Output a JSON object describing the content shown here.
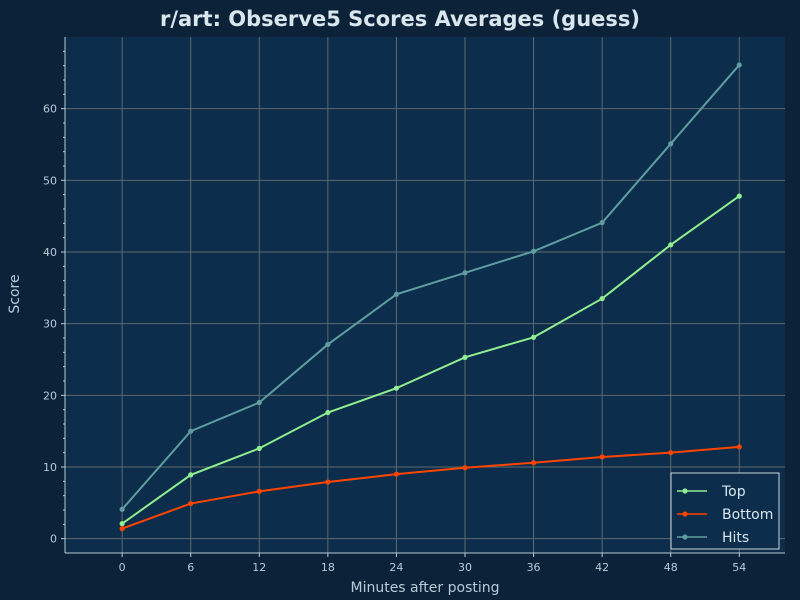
{
  "chart_data": {
    "type": "line",
    "title": "r/art: Observe5 Scores Averages (guess)",
    "xlabel": "Minutes after posting",
    "ylabel": "Score",
    "x": [
      0,
      6,
      12,
      18,
      24,
      30,
      36,
      42,
      48,
      54
    ],
    "xticks": [
      "0",
      "6",
      "12",
      "18",
      "24",
      "30",
      "36",
      "42",
      "48",
      "54"
    ],
    "yticks": [
      "0",
      "10",
      "20",
      "30",
      "40",
      "50",
      "60"
    ],
    "xlim": [
      -5,
      58
    ],
    "ylim": [
      -2,
      70
    ],
    "grid": true,
    "legend_position": "bottom-right",
    "series": [
      {
        "name": "Top",
        "color": "#90ee90",
        "values": [
          2.1,
          8.9,
          12.6,
          17.6,
          21.0,
          25.3,
          28.1,
          33.5,
          41.0,
          47.8
        ]
      },
      {
        "name": "Bottom",
        "color": "#ff4500",
        "values": [
          1.4,
          4.9,
          6.6,
          7.9,
          9.0,
          9.9,
          10.6,
          11.4,
          12.0,
          12.8
        ]
      },
      {
        "name": "Hits",
        "color": "#5f9ea0",
        "values": [
          4.1,
          15.0,
          19.0,
          27.1,
          34.1,
          37.1,
          40.1,
          44.1,
          55.1,
          66.1
        ]
      }
    ]
  },
  "colors": {
    "background": "#0b2238",
    "plot_background": "#0c2d4b",
    "grid": "#5e6a6e",
    "axis": "#b8cbd8"
  }
}
